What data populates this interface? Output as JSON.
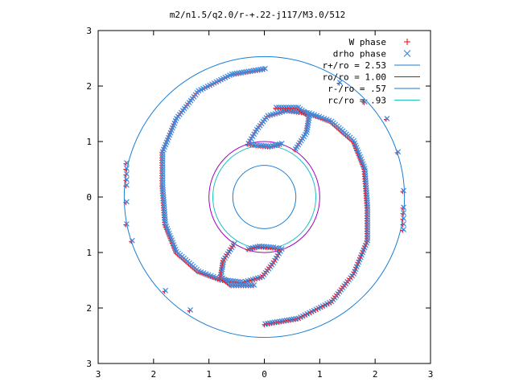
{
  "chart_data": {
    "type": "scatter",
    "title": "m2/n1.5/q2.0/r-+.22-j117/M3.0/512",
    "xlabel": "",
    "ylabel": "",
    "xlim": [
      -3,
      3
    ],
    "ylim": [
      -3,
      3
    ],
    "x_ticks": [
      -3,
      -2,
      -1,
      0,
      1,
      2,
      3
    ],
    "y_ticks": [
      -3,
      -2,
      -1,
      0,
      1,
      2,
      3
    ],
    "x_tick_labels": [
      "3",
      "2",
      "1",
      "0",
      "1",
      "2",
      "3"
    ],
    "y_tick_labels": [
      "3",
      "2",
      "1",
      "0",
      "1",
      "2",
      "3"
    ],
    "grid": false,
    "legend_position": "top-right",
    "series": [
      {
        "name": "W phase",
        "marker": "plus",
        "color": "#ff0000"
      },
      {
        "name": "drho phase",
        "marker": "cross",
        "color": "#3c8ce0"
      }
    ],
    "circles": [
      {
        "name": "r+/ro = 2.53",
        "radius": 2.53,
        "color": "#1a7ed4"
      },
      {
        "name": "ro/ro = 1.00",
        "radius": 1.0,
        "color": "#a000c0"
      },
      {
        "name": "r-/ro = .57",
        "radius": 0.57,
        "color": "#1a7ed4"
      },
      {
        "name": "rc/ro = .93",
        "radius": 0.93,
        "color": "#20c0c0"
      }
    ],
    "spiral_arms": [
      {
        "points": [
          [
            0.0,
            2.3
          ],
          [
            -0.6,
            2.2
          ],
          [
            -1.2,
            1.9
          ],
          [
            -1.6,
            1.4
          ],
          [
            -1.85,
            0.8
          ],
          [
            -1.85,
            0.2
          ],
          [
            -1.8,
            -0.5
          ],
          [
            -1.6,
            -1.0
          ],
          [
            -1.2,
            -1.35
          ],
          [
            -0.8,
            -1.5
          ],
          [
            -0.4,
            -1.55
          ],
          [
            -0.05,
            -1.45
          ],
          [
            0.15,
            -1.2
          ],
          [
            0.3,
            -0.95
          ]
        ]
      },
      {
        "points": [
          [
            0.0,
            -2.3
          ],
          [
            0.6,
            -2.2
          ],
          [
            1.2,
            -1.9
          ],
          [
            1.6,
            -1.4
          ],
          [
            1.85,
            -0.8
          ],
          [
            1.85,
            -0.2
          ],
          [
            1.8,
            0.5
          ],
          [
            1.6,
            1.0
          ],
          [
            1.2,
            1.35
          ],
          [
            0.8,
            1.5
          ],
          [
            0.4,
            1.55
          ],
          [
            0.05,
            1.45
          ],
          [
            -0.15,
            1.2
          ],
          [
            -0.3,
            0.95
          ]
        ]
      },
      {
        "points": [
          [
            0.2,
            1.6
          ],
          [
            0.6,
            1.6
          ],
          [
            0.8,
            1.45
          ],
          [
            0.75,
            1.15
          ],
          [
            0.55,
            0.85
          ]
        ]
      },
      {
        "points": [
          [
            -0.2,
            -1.6
          ],
          [
            -0.6,
            -1.6
          ],
          [
            -0.8,
            -1.45
          ],
          [
            -0.75,
            -1.15
          ],
          [
            -0.55,
            -0.85
          ]
        ]
      },
      {
        "points": [
          [
            -0.3,
            -0.95
          ],
          [
            -0.1,
            -0.9
          ],
          [
            0.15,
            -0.92
          ],
          [
            0.3,
            -0.95
          ]
        ]
      },
      {
        "points": [
          [
            0.3,
            0.95
          ],
          [
            0.1,
            0.9
          ],
          [
            -0.15,
            0.92
          ],
          [
            -0.3,
            0.95
          ]
        ]
      }
    ],
    "scattered_points": [
      [
        -2.5,
        0.6
      ],
      [
        -2.5,
        0.5
      ],
      [
        -2.5,
        0.4
      ],
      [
        -2.5,
        0.3
      ],
      [
        -2.5,
        0.2
      ],
      [
        -2.5,
        -0.1
      ],
      [
        -2.5,
        -0.5
      ],
      [
        -2.4,
        -0.8
      ],
      [
        -1.8,
        -1.7
      ],
      [
        -1.35,
        -2.05
      ],
      [
        2.5,
        -0.6
      ],
      [
        2.5,
        -0.5
      ],
      [
        2.5,
        -0.4
      ],
      [
        2.5,
        -0.3
      ],
      [
        2.5,
        -0.2
      ],
      [
        2.5,
        0.1
      ],
      [
        2.4,
        0.8
      ],
      [
        2.2,
        1.4
      ],
      [
        1.8,
        1.7
      ],
      [
        1.35,
        2.05
      ]
    ]
  }
}
